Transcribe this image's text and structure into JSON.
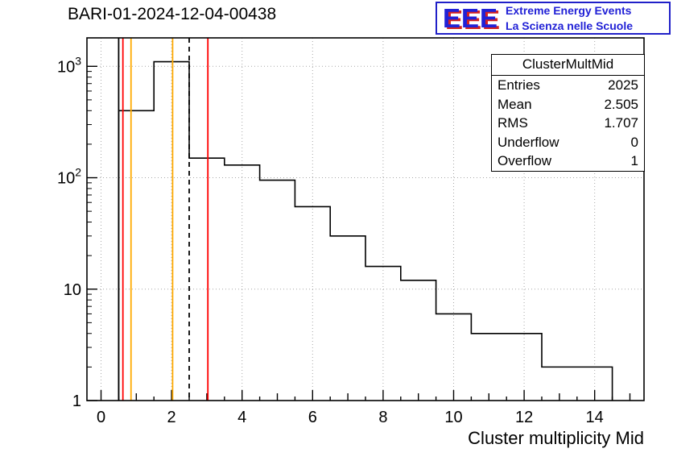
{
  "page": {
    "title": "BARI-01-2024-12-04-00438"
  },
  "logo": {
    "letters": "EEE",
    "line1": "Extreme Energy Events",
    "line2": "La Scienza nelle Scuole",
    "blue": "#2121d6",
    "red": "#d62121"
  },
  "stats": {
    "title": "ClusterMultMid",
    "rows": [
      {
        "label": "Entries",
        "value": "2025"
      },
      {
        "label": "Mean",
        "value": "2.505"
      },
      {
        "label": "RMS",
        "value": "1.707"
      },
      {
        "label": "Underflow",
        "value": "0"
      },
      {
        "label": "Overflow",
        "value": "1"
      }
    ]
  },
  "chart_data": {
    "type": "bar",
    "style": "step-histogram",
    "title": "BARI-01-2024-12-04-00438",
    "xlabel": "Cluster multiplicity Mid",
    "ylabel": "",
    "yscale": "log",
    "xlim": [
      -0.4,
      15.4
    ],
    "ylim": [
      1,
      1800
    ],
    "grid": true,
    "x_ticks": [
      0,
      2,
      4,
      6,
      8,
      10,
      12,
      14
    ],
    "y_ticks": [
      "1",
      "10",
      "10^2",
      "10^3"
    ],
    "bin_edges": [
      0.5,
      1.5,
      2.5,
      3.5,
      4.5,
      5.5,
      6.5,
      7.5,
      8.5,
      9.5,
      10.5,
      11.5,
      12.5,
      13.5,
      14.5
    ],
    "counts": [
      400,
      1100,
      150,
      130,
      95,
      55,
      30,
      16,
      12,
      6,
      4,
      4,
      2,
      2
    ],
    "line_color": "#000000",
    "grid_color": "#a8a8a8",
    "marker_lines": [
      {
        "x": 0.5,
        "color": "#000000",
        "style": "solid"
      },
      {
        "x": 0.62,
        "color": "#ff0000",
        "style": "solid"
      },
      {
        "x": 0.85,
        "color": "#ffaa00",
        "style": "solid"
      },
      {
        "x": 2.03,
        "color": "#ffaa00",
        "style": "solid"
      },
      {
        "x": 2.5,
        "color": "#000000",
        "style": "dashed"
      },
      {
        "x": 3.03,
        "color": "#ff0000",
        "style": "solid"
      }
    ]
  }
}
